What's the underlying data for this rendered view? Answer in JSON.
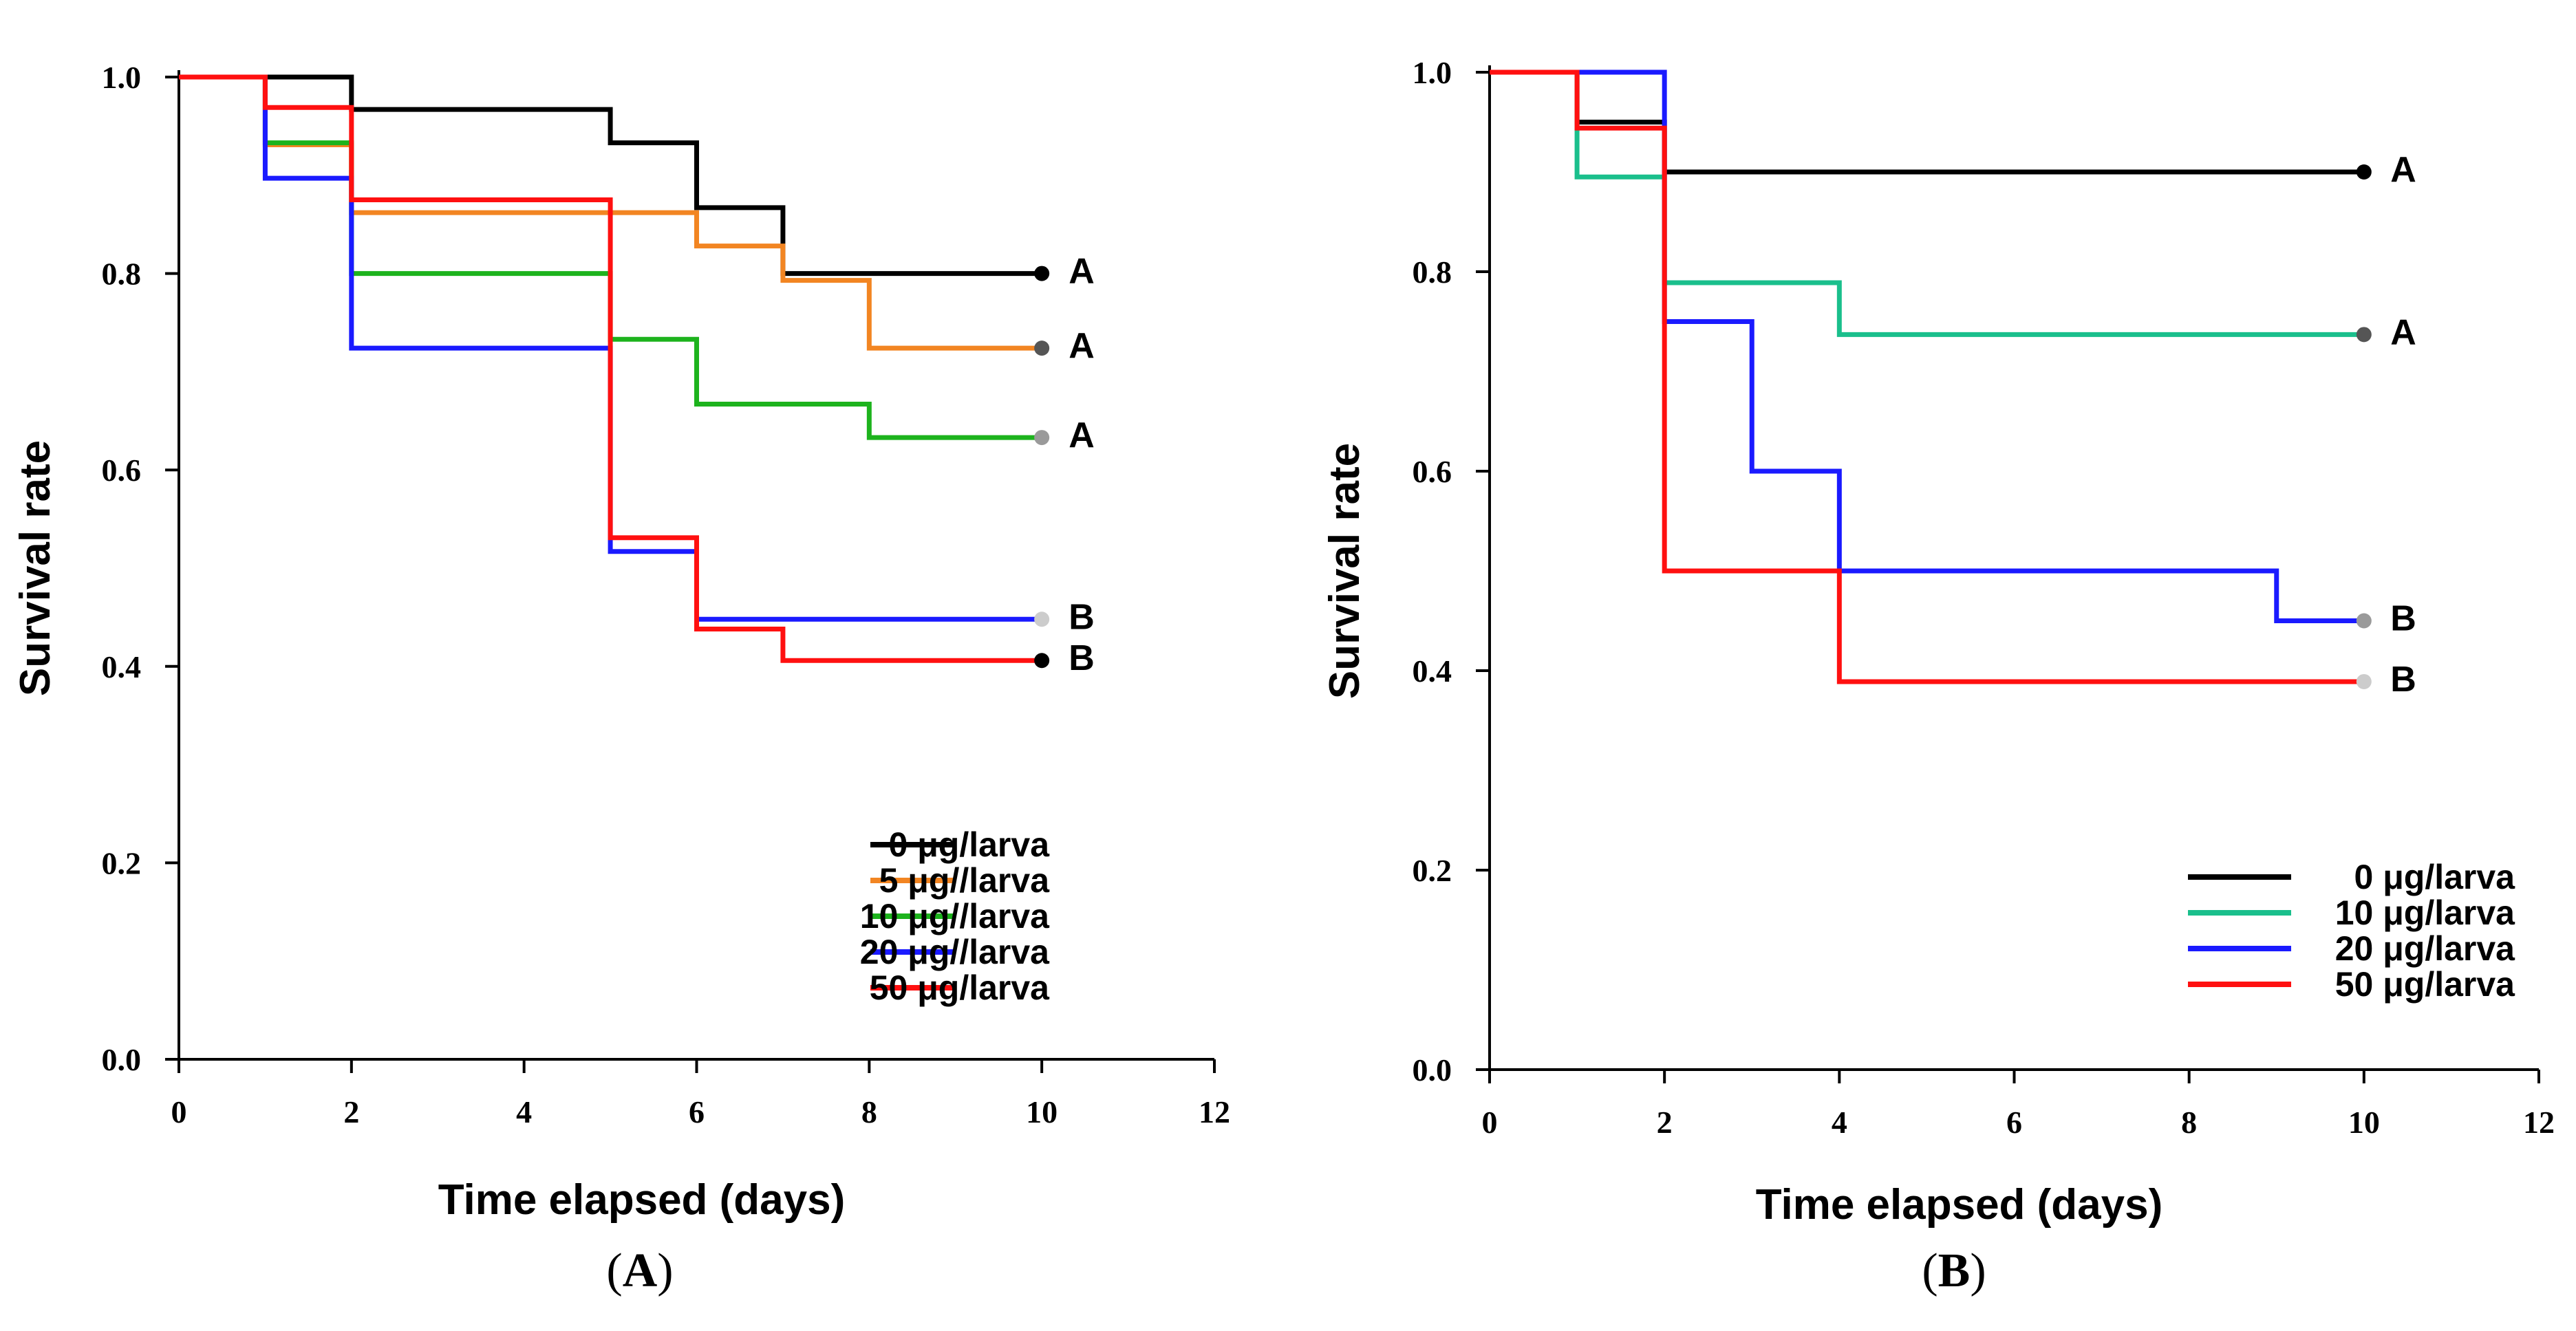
{
  "chart_data": [
    {
      "type": "line",
      "panel": "A",
      "panel_label": "A",
      "xlabel": "Time elapsed (days)",
      "ylabel": "Survival rate",
      "xlim": [
        0,
        12
      ],
      "ylim": [
        0,
        1.0
      ],
      "xticks": [
        0,
        2,
        4,
        6,
        8,
        10,
        12
      ],
      "xtick_labels": [
        "0",
        "2",
        "4",
        "6",
        "8",
        "10",
        "12"
      ],
      "yticks": [
        0.0,
        0.2,
        0.4,
        0.6,
        0.8,
        1.0
      ],
      "ytick_labels": [
        "0.0",
        "0.2",
        "0.4",
        "0.6",
        "0.8",
        "1.0"
      ],
      "grid": false,
      "legend_position": "bottom-right",
      "series": [
        {
          "name": "0 μg/larva",
          "color": "#000000",
          "end_marker_color": "#000000",
          "group": "A",
          "steps": [
            [
              0,
              1.0
            ],
            [
              2,
              0.967
            ],
            [
              5,
              0.933
            ],
            [
              6,
              0.867
            ],
            [
              7,
              0.8
            ],
            [
              10,
              0.8
            ]
          ]
        },
        {
          "name": "5 μg//larva",
          "color": "#f28522",
          "end_marker_color": "#555555",
          "group": "A",
          "steps": [
            [
              0,
              1.0
            ],
            [
              1,
              0.931
            ],
            [
              2,
              0.862
            ],
            [
              6,
              0.828
            ],
            [
              7,
              0.793
            ],
            [
              8,
              0.724
            ],
            [
              10,
              0.724
            ]
          ]
        },
        {
          "name": "10 μg//larva",
          "color": "#1db31d",
          "end_marker_color": "#9a9a9a",
          "group": "A",
          "steps": [
            [
              0,
              1.0
            ],
            [
              1,
              0.933
            ],
            [
              2,
              0.8
            ],
            [
              5,
              0.733
            ],
            [
              6,
              0.667
            ],
            [
              8,
              0.633
            ],
            [
              10,
              0.633
            ]
          ]
        },
        {
          "name": "20 μg//larva",
          "color": "#1a1aff",
          "end_marker_color": "#cccccc",
          "group": "B",
          "steps": [
            [
              0,
              1.0
            ],
            [
              1,
              0.897
            ],
            [
              2,
              0.724
            ],
            [
              5,
              0.517
            ],
            [
              6,
              0.448
            ],
            [
              10,
              0.448
            ]
          ]
        },
        {
          "name": "50 μg/larva",
          "color": "#ff1010",
          "end_marker_color": "#000000",
          "group": "B",
          "steps": [
            [
              0,
              1.0
            ],
            [
              1,
              0.969
            ],
            [
              2,
              0.875
            ],
            [
              5,
              0.531
            ],
            [
              6,
              0.438
            ],
            [
              7,
              0.406
            ],
            [
              10,
              0.406
            ]
          ]
        }
      ]
    },
    {
      "type": "line",
      "panel": "B",
      "panel_label": "B",
      "xlabel": "Time elapsed (days)",
      "ylabel": "Survival rate",
      "xlim": [
        0,
        12
      ],
      "ylim": [
        0,
        1.0
      ],
      "xticks": [
        0,
        2,
        4,
        6,
        8,
        10,
        12
      ],
      "xtick_labels": [
        "0",
        "2",
        "4",
        "6",
        "8",
        "10",
        "12"
      ],
      "yticks": [
        0.0,
        0.2,
        0.4,
        0.6,
        0.8,
        1.0
      ],
      "ytick_labels": [
        "0.0",
        "0.2",
        "0.4",
        "0.6",
        "0.8",
        "1.0"
      ],
      "grid": false,
      "legend_position": "bottom-right",
      "series": [
        {
          "name": "0 μg/larva",
          "color": "#000000",
          "end_marker_color": "#000000",
          "group": "A",
          "steps": [
            [
              0,
              1.0
            ],
            [
              1,
              0.95
            ],
            [
              2,
              0.9
            ],
            [
              10,
              0.9
            ]
          ]
        },
        {
          "name": "10 μg/larva",
          "color": "#1abf8c",
          "end_marker_color": "#555555",
          "group": "A",
          "steps": [
            [
              0,
              1.0
            ],
            [
              1,
              0.895
            ],
            [
              2,
              0.789
            ],
            [
              4,
              0.737
            ],
            [
              10,
              0.737
            ]
          ]
        },
        {
          "name": "20 μg/larva",
          "color": "#1a1aff",
          "end_marker_color": "#9a9a9a",
          "group": "B",
          "steps": [
            [
              0,
              1.0
            ],
            [
              2,
              0.75
            ],
            [
              3,
              0.6
            ],
            [
              4,
              0.5
            ],
            [
              9,
              0.45
            ],
            [
              10,
              0.45
            ]
          ]
        },
        {
          "name": "50 μg/larva",
          "color": "#ff1010",
          "end_marker_color": "#cccccc",
          "group": "B",
          "steps": [
            [
              0,
              1.0
            ],
            [
              1,
              0.944
            ],
            [
              2,
              0.5
            ],
            [
              4,
              0.389
            ],
            [
              10,
              0.389
            ]
          ]
        }
      ]
    }
  ]
}
